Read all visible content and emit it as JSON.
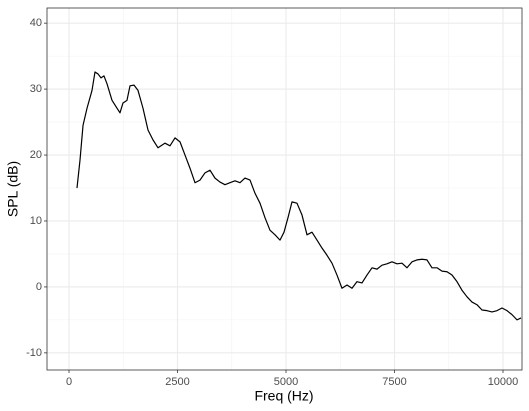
{
  "chart_data": {
    "type": "line",
    "xlabel": "Freq (Hz)",
    "ylabel": "SPL (dB)",
    "x": [
      184,
      253,
      323,
      415,
      530,
      599,
      668,
      737,
      806,
      876,
      991,
      1106,
      1175,
      1244,
      1336,
      1406,
      1498,
      1590,
      1705,
      1820,
      1935,
      2051,
      2212,
      2327,
      2442,
      2558,
      2673,
      2788,
      2903,
      3018,
      3134,
      3249,
      3364,
      3479,
      3594,
      3710,
      3825,
      3940,
      4055,
      4171,
      4286,
      4401,
      4516,
      4631,
      4747,
      4862,
      4954,
      5046,
      5138,
      5253,
      5369,
      5484,
      5599,
      5714,
      5829,
      5945,
      6060,
      6175,
      6290,
      6406,
      6521,
      6636,
      6751,
      6866,
      6982,
      7097,
      7212,
      7327,
      7442,
      7558,
      7673,
      7788,
      7903,
      8018,
      8134,
      8249,
      8364,
      8479,
      8594,
      8710,
      8825,
      8940,
      9055,
      9171,
      9286,
      9401,
      9516,
      9631,
      9747,
      9862,
      9977,
      10092,
      10207,
      10323,
      10415
    ],
    "series": [
      {
        "name": "SPL",
        "color": "#000000",
        "values": [
          15.0,
          19.2,
          24.5,
          27.1,
          29.8,
          32.6,
          32.3,
          31.7,
          32.0,
          30.8,
          28.3,
          27.1,
          26.4,
          27.9,
          28.3,
          30.5,
          30.6,
          29.8,
          27.1,
          23.8,
          22.3,
          21.1,
          21.8,
          21.4,
          22.6,
          22.0,
          20.0,
          18.0,
          15.8,
          16.2,
          17.3,
          17.7,
          16.5,
          15.9,
          15.5,
          15.8,
          16.1,
          15.8,
          16.5,
          16.2,
          14.2,
          12.7,
          10.5,
          8.6,
          7.9,
          7.1,
          8.3,
          10.5,
          12.9,
          12.7,
          10.9,
          7.9,
          8.3,
          7.1,
          5.9,
          4.8,
          3.6,
          1.8,
          -0.2,
          0.3,
          -0.2,
          0.8,
          0.6,
          1.8,
          2.9,
          2.7,
          3.3,
          3.5,
          3.8,
          3.5,
          3.6,
          2.9,
          3.8,
          4.1,
          4.2,
          4.1,
          2.9,
          2.9,
          2.4,
          2.3,
          1.8,
          0.8,
          -0.5,
          -1.5,
          -2.3,
          -2.7,
          -3.5,
          -3.6,
          -3.8,
          -3.6,
          -3.2,
          -3.6,
          -4.2,
          -5.0,
          -4.7
        ]
      }
    ],
    "xlim": [
      -507,
      10438
    ],
    "ylim": [
      -12.6,
      42.3
    ],
    "xticks": [
      0,
      2500,
      5000,
      7500,
      10000
    ],
    "yticks": [
      -10,
      0,
      10,
      20,
      30,
      40
    ],
    "grid": true
  }
}
